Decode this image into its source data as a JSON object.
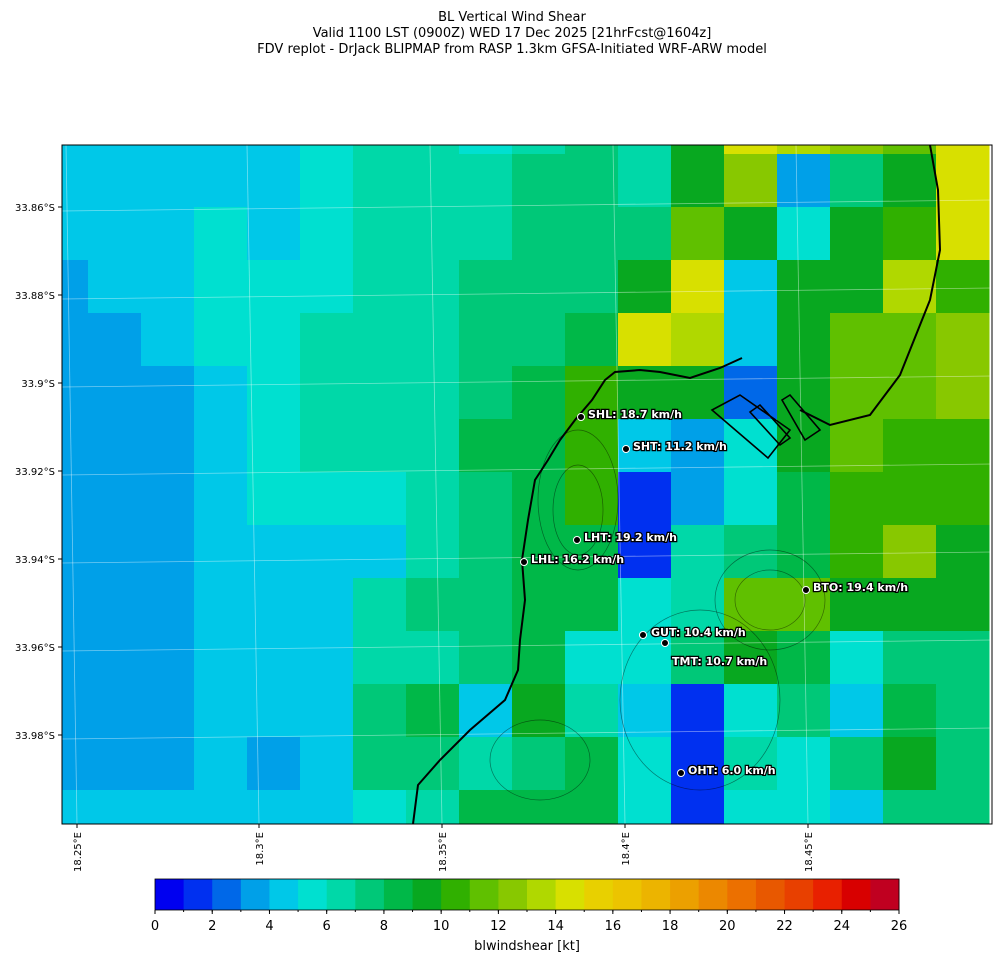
{
  "header": {
    "title": "BL Vertical Wind Shear",
    "subtitle": "Valid 1100 LST (0900Z) WED 17 Dec 2025 [21hrFcst@1604z]",
    "source": "FDV replot - DrJack BLIPMAP from RASP 1.3km GFSA-Initiated WRF-ARW model"
  },
  "map": {
    "lat_labels": [
      "33.86°S",
      "33.88°S",
      "33.9°S",
      "33.92°S",
      "33.94°S",
      "33.96°S",
      "33.98°S"
    ],
    "lon_labels": [
      "18.25°E",
      "18.3°E",
      "18.35°E",
      "18.4°E",
      "18.45°E"
    ],
    "stations": [
      "SHL: 18.7 km/h",
      "SHT: 11.2 km/h",
      "LHT: 19.2 km/h",
      "LHL: 16.2 km/h",
      "BTO: 19.4 km/h",
      "GUT: 10.4 km/h",
      "TMT: 10.7 km/h",
      "OHT: 6.0 km/h"
    ],
    "grid": [
      [
        4,
        4,
        4,
        4,
        4,
        5,
        6,
        6,
        5,
        6,
        7,
        6,
        9,
        14,
        13,
        12,
        11,
        14
      ],
      [
        4,
        4,
        4,
        4,
        4,
        5,
        6,
        6,
        6,
        7,
        7,
        6,
        9,
        12,
        3,
        7,
        9,
        14
      ],
      [
        4,
        4,
        4,
        5,
        4,
        5,
        6,
        6,
        6,
        7,
        7,
        7,
        11,
        9,
        5,
        9,
        10,
        14
      ],
      [
        3,
        4,
        4,
        5,
        5,
        5,
        6,
        6,
        7,
        7,
        7,
        9,
        14,
        4,
        9,
        9,
        13,
        10
      ],
      [
        3,
        3,
        4,
        5,
        5,
        6,
        6,
        6,
        7,
        7,
        8,
        14,
        13,
        4,
        9,
        11,
        11,
        12
      ],
      [
        3,
        3,
        3,
        4,
        5,
        6,
        6,
        6,
        7,
        8,
        10,
        9,
        9,
        2,
        9,
        11,
        11,
        12
      ],
      [
        3,
        3,
        3,
        4,
        5,
        6,
        6,
        6,
        8,
        8,
        10,
        4,
        3,
        5,
        9,
        11,
        10,
        10
      ],
      [
        3,
        3,
        3,
        4,
        5,
        5,
        5,
        6,
        7,
        8,
        10,
        1,
        3,
        5,
        8,
        10,
        10,
        10
      ],
      [
        3,
        3,
        3,
        4,
        4,
        4,
        4,
        6,
        7,
        8,
        8,
        1,
        6,
        7,
        8,
        10,
        12,
        9
      ],
      [
        3,
        3,
        3,
        4,
        4,
        4,
        6,
        7,
        7,
        8,
        8,
        5,
        6,
        11,
        11,
        9,
        9,
        9
      ],
      [
        3,
        3,
        3,
        4,
        4,
        4,
        6,
        6,
        7,
        8,
        5,
        5,
        7,
        9,
        8,
        5,
        7,
        7
      ],
      [
        3,
        3,
        3,
        4,
        4,
        4,
        7,
        8,
        4,
        9,
        6,
        4,
        1,
        5,
        7,
        4,
        8,
        7
      ],
      [
        3,
        3,
        3,
        4,
        3,
        4,
        7,
        7,
        6,
        7,
        8,
        5,
        1,
        6,
        5,
        7,
        9,
        7
      ],
      [
        4,
        4,
        4,
        4,
        4,
        4,
        5,
        6,
        8,
        8,
        8,
        5,
        1,
        5,
        5,
        4,
        7,
        7
      ]
    ]
  },
  "colorbar": {
    "label": "blwindshear [kt]",
    "lim": [
      0,
      26
    ],
    "ticks": [
      0,
      2,
      4,
      6,
      8,
      10,
      12,
      14,
      16,
      18,
      20,
      22,
      24,
      26
    ],
    "colors": [
      "#0000f0",
      "#0030f0",
      "#0068e8",
      "#00a0e8",
      "#00c8e8",
      "#00e0d0",
      "#00d8a8",
      "#00c878",
      "#00b848",
      "#08a820",
      "#30b000",
      "#60c000",
      "#88c800",
      "#b0d800",
      "#d8e000",
      "#e8d000",
      "#ecc400",
      "#ecb400",
      "#eca000",
      "#ec8800",
      "#ec7000",
      "#e85800",
      "#e84000",
      "#e82000",
      "#d80000",
      "#c00020"
    ]
  }
}
